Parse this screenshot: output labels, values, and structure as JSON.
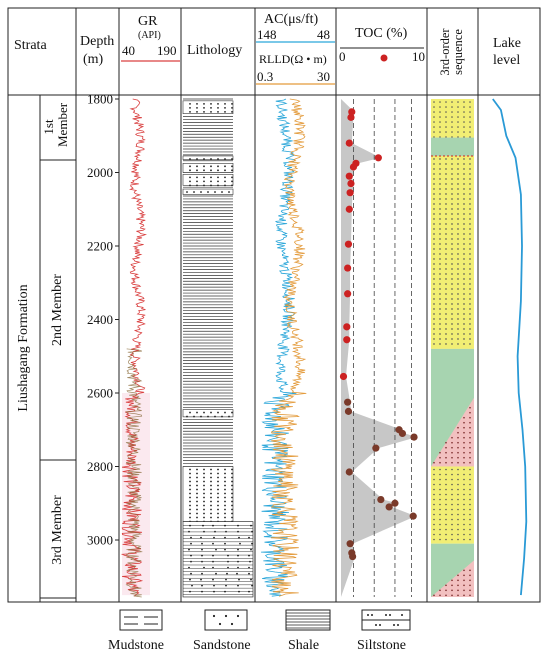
{
  "header": {
    "strata": "Strata",
    "depth": "Depth",
    "depth_unit": "(m)",
    "gr_title": "GR",
    "gr_unit": "(API)",
    "gr_min": "40",
    "gr_max": "190",
    "lithology": "Lithology",
    "ac_title": "AC(μs/ft)",
    "ac_min": "148",
    "ac_max": "48",
    "rlld_title": "RLLD(Ω • m)",
    "rlld_min": "0.3",
    "rlld_max": "30",
    "toc_title": "TOC (%)",
    "toc_min": "0",
    "toc_max": "10",
    "sequence": "3rd-order sequence",
    "lake_level_line1": "Lake",
    "lake_level_line2": "level"
  },
  "strata": {
    "formation": "Liushagang  Formation",
    "members": [
      "1st Member",
      "2nd Member",
      "3rd Member"
    ]
  },
  "depth_ticks": [
    "1800",
    "2000",
    "2200",
    "2400",
    "2600",
    "2800",
    "3000"
  ],
  "legend": {
    "mudstone": "Mudstone",
    "sandstone": "Sandstone",
    "shale": "Shale",
    "siltstone": "Siltstone"
  },
  "colors": {
    "gr": "#d94040",
    "ac": "#2aa6d9",
    "rlld": "#e39a3a",
    "toc_dot": "#cc2222",
    "toc_band": "#bdbdbd",
    "seq_yellow": "#f1ee74",
    "seq_green": "#a7d4b0",
    "seq_red_dots": "#f2c0c0",
    "lake_level": "#2a9ad6"
  },
  "chart_data": {
    "type": "scatter",
    "ylabel": "Depth (m)",
    "ylim": [
      1780,
      3160
    ],
    "toc_xlim": [
      0,
      10
    ],
    "toc_points": [
      {
        "depth": 1835,
        "toc": 1.3
      },
      {
        "depth": 1850,
        "toc": 1.2
      },
      {
        "depth": 1920,
        "toc": 1.0
      },
      {
        "depth": 1960,
        "toc": 4.5
      },
      {
        "depth": 1975,
        "toc": 1.8
      },
      {
        "depth": 1985,
        "toc": 1.5
      },
      {
        "depth": 2010,
        "toc": 1.0
      },
      {
        "depth": 2030,
        "toc": 1.2
      },
      {
        "depth": 2055,
        "toc": 1.1
      },
      {
        "depth": 2100,
        "toc": 1.0
      },
      {
        "depth": 2195,
        "toc": 0.9
      },
      {
        "depth": 2260,
        "toc": 0.8
      },
      {
        "depth": 2330,
        "toc": 0.8
      },
      {
        "depth": 2420,
        "toc": 0.7
      },
      {
        "depth": 2455,
        "toc": 0.7
      },
      {
        "depth": 2555,
        "toc": 0.3
      },
      {
        "depth": 2625,
        "toc": 0.8
      },
      {
        "depth": 2650,
        "toc": 0.9
      },
      {
        "depth": 2700,
        "toc": 7.0
      },
      {
        "depth": 2710,
        "toc": 7.4
      },
      {
        "depth": 2720,
        "toc": 8.8
      },
      {
        "depth": 2750,
        "toc": 4.2
      },
      {
        "depth": 2815,
        "toc": 1.0
      },
      {
        "depth": 2890,
        "toc": 4.8
      },
      {
        "depth": 2900,
        "toc": 6.5
      },
      {
        "depth": 2910,
        "toc": 5.8
      },
      {
        "depth": 2935,
        "toc": 8.7
      },
      {
        "depth": 3010,
        "toc": 1.1
      },
      {
        "depth": 3035,
        "toc": 1.3
      },
      {
        "depth": 3045,
        "toc": 1.4
      }
    ],
    "toc_gridlines": [
      1.5,
      4.0,
      6.5,
      8.5
    ],
    "sequences": [
      {
        "top": 1800,
        "base": 1905,
        "fill": "yellow"
      },
      {
        "top": 1905,
        "base": 1955,
        "fill": "green"
      },
      {
        "top": 1955,
        "base": 2480,
        "fill": "yellow"
      },
      {
        "top": 2480,
        "base": 2800,
        "fill": "green-red"
      },
      {
        "top": 2800,
        "base": 3010,
        "fill": "yellow"
      },
      {
        "top": 3010,
        "base": 3160,
        "fill": "green-red"
      }
    ],
    "lake_level": [
      {
        "depth": 1800,
        "x": 0.2
      },
      {
        "depth": 1830,
        "x": 0.35
      },
      {
        "depth": 1900,
        "x": 0.45
      },
      {
        "depth": 1960,
        "x": 0.62
      },
      {
        "depth": 2060,
        "x": 0.72
      },
      {
        "depth": 2200,
        "x": 0.74
      },
      {
        "depth": 2350,
        "x": 0.72
      },
      {
        "depth": 2500,
        "x": 0.66
      },
      {
        "depth": 2600,
        "x": 0.68
      },
      {
        "depth": 2700,
        "x": 0.75
      },
      {
        "depth": 2800,
        "x": 0.8
      },
      {
        "depth": 2950,
        "x": 0.82
      },
      {
        "depth": 3050,
        "x": 0.78
      },
      {
        "depth": 3150,
        "x": 0.72
      }
    ]
  }
}
